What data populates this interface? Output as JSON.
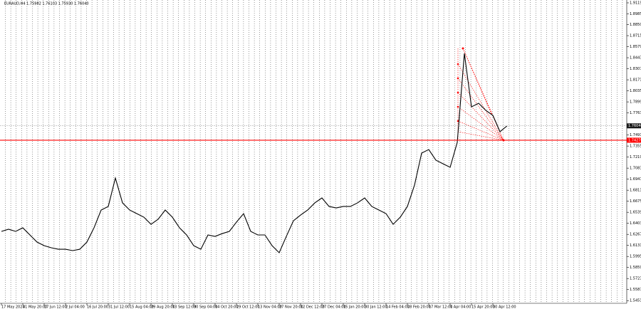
{
  "chart_data": {
    "type": "line",
    "title": "EURAUD,H4  1.75982 1.76103 1.75930 1.76040",
    "categories": [
      "17 May 2024",
      null,
      null,
      "31 May 20:00",
      null,
      null,
      "17 Jun 12:00",
      null,
      null,
      "2 Jul 04:00",
      null,
      null,
      "16 Jul 20:00",
      null,
      null,
      "31 Jul 12:00",
      null,
      null,
      "15 Aug 04:00",
      null,
      null,
      "29 Aug 20:00",
      null,
      null,
      "13 Sep 12:00",
      null,
      null,
      "30 Sep 04:00",
      null,
      null,
      "14 Oct 20:00",
      null,
      null,
      "29 Oct 12:00",
      null,
      null,
      "13 Nov 04:00",
      null,
      null,
      "27 Nov 20:00",
      null,
      null,
      "12 Dec 12:00",
      null,
      null,
      "27 Dec 04:00",
      null,
      null,
      "15 Jan 20:00",
      null,
      null,
      "30 Jan 12:00",
      null,
      null,
      "14 Feb 04:00",
      null,
      null,
      "28 Feb 20:00",
      null,
      null,
      "17 Mar 12:00",
      null,
      null,
      "1 Apr 04:00",
      null,
      null,
      "15 Apr 20:00",
      null,
      null,
      "30 Apr 12:00",
      null,
      null
    ],
    "values": [
      1.6304,
      1.633,
      1.6304,
      1.6348,
      1.626,
      1.6172,
      1.6128,
      1.6102,
      1.6084,
      1.6084,
      1.6067,
      1.6084,
      1.6172,
      1.6348,
      1.6567,
      1.6611,
      1.6961,
      1.6655,
      1.6567,
      1.6523,
      1.6479,
      1.6391,
      1.6453,
      1.6567,
      1.6479,
      1.6348,
      1.626,
      1.6128,
      1.6084,
      1.626,
      1.6242,
      1.6277,
      1.6304,
      1.6418,
      1.6523,
      1.6304,
      1.626,
      1.626,
      1.6128,
      1.6041,
      1.6242,
      1.6435,
      1.6505,
      1.6567,
      1.6655,
      1.6716,
      1.6611,
      1.6593,
      1.6611,
      1.6611,
      1.6655,
      1.6716,
      1.6611,
      1.6567,
      1.6523,
      1.6391,
      1.6479,
      1.6611,
      1.6874,
      1.7268,
      1.7312,
      1.7181,
      1.7137,
      1.7093,
      1.74,
      1.8496,
      1.7838,
      1.7882,
      1.7795,
      1.7733,
      1.7532,
      1.7604
    ],
    "color": "#000000",
    "ylim": [
      1.5418,
      1.9154
    ],
    "yticks": [
      {
        "value": 1.9119,
        "label": "1.91190"
      },
      {
        "value": 1.8985,
        "label": "1.89850"
      },
      {
        "value": 1.885,
        "label": "1.88500"
      },
      {
        "value": 1.8715,
        "label": "1.87150"
      },
      {
        "value": 1.8579,
        "label": "1.85790"
      },
      {
        "value": 1.8443,
        "label": "1.84430"
      },
      {
        "value": 1.8307,
        "label": "1.83070"
      },
      {
        "value": 1.8171,
        "label": "1.81710"
      },
      {
        "value": 1.8035,
        "label": "1.80350"
      },
      {
        "value": 1.7899,
        "label": "1.78990"
      },
      {
        "value": 1.7763,
        "label": "1.77630"
      },
      {
        "value": 1.7491,
        "label": "1.74910"
      },
      {
        "value": 1.7355,
        "label": "1.73550"
      },
      {
        "value": 1.7219,
        "label": "1.72190"
      },
      {
        "value": 1.7083,
        "label": "1.70830"
      },
      {
        "value": 1.6947,
        "label": "1.69470"
      },
      {
        "value": 1.6811,
        "label": "1.68110"
      },
      {
        "value": 1.6675,
        "label": "1.66750"
      },
      {
        "value": 1.6539,
        "label": "1.65390"
      },
      {
        "value": 1.6403,
        "label": "1.64030"
      },
      {
        "value": 1.6267,
        "label": "1.62670"
      },
      {
        "value": 1.6131,
        "label": "1.61310"
      },
      {
        "value": 1.5995,
        "label": "1.59950"
      },
      {
        "value": 1.5859,
        "label": "1.58590"
      },
      {
        "value": 1.5723,
        "label": "1.57230"
      },
      {
        "value": 1.5587,
        "label": "1.55870"
      },
      {
        "value": 1.5451,
        "label": "1.54510"
      }
    ],
    "current_price": {
      "value": 1.7604,
      "label": "1.76040"
    },
    "level_line": {
      "value": 1.7427,
      "label": "1.74270",
      "color": "#ff0000"
    }
  }
}
